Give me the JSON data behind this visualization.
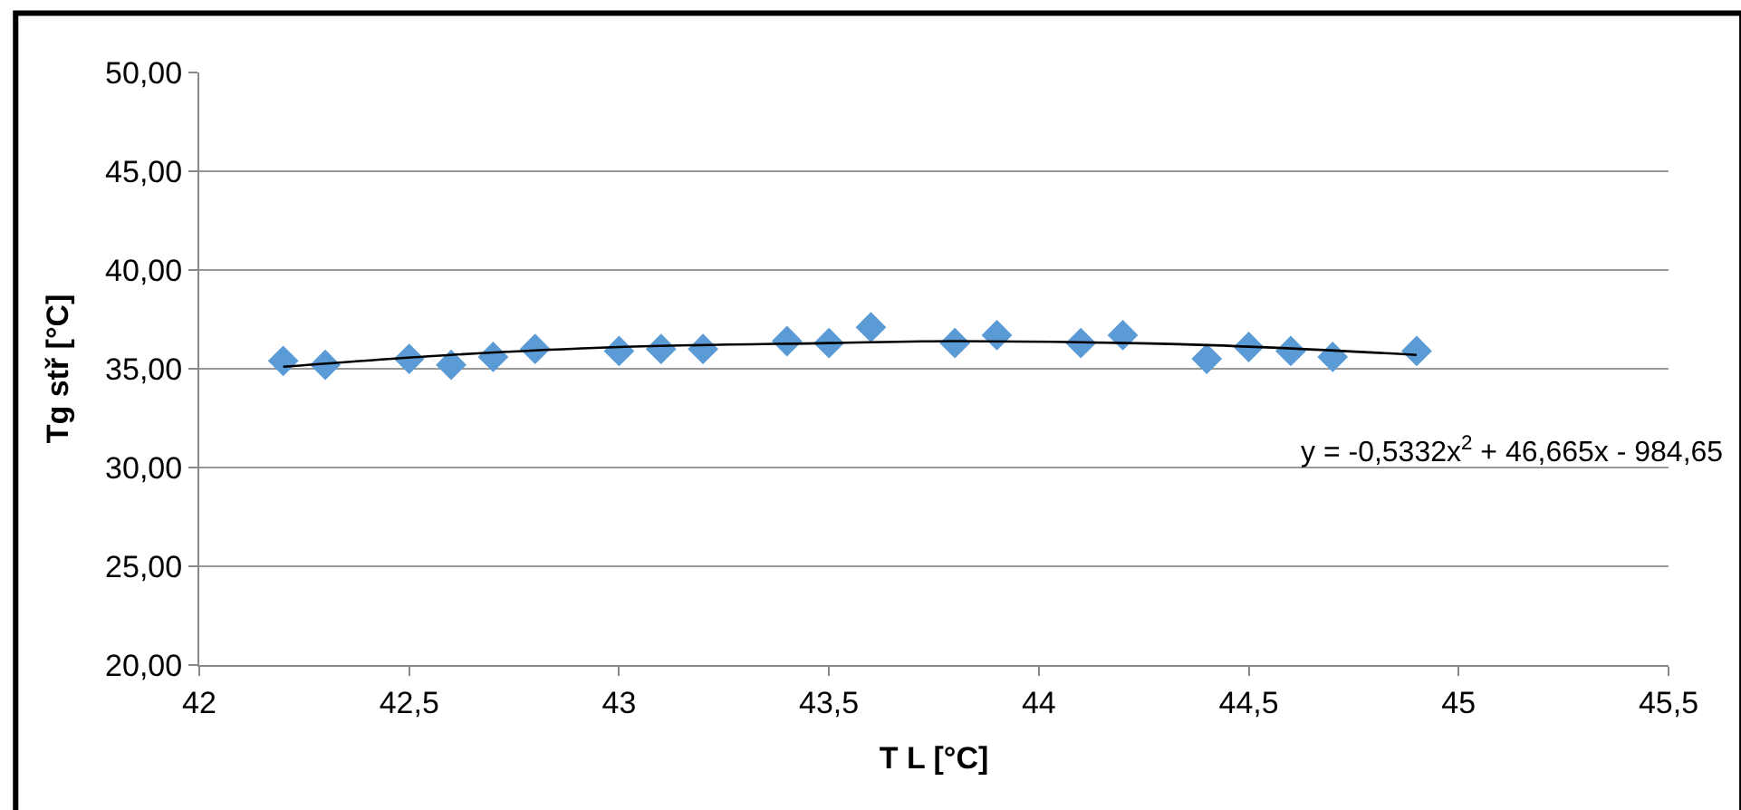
{
  "chart_data": {
    "type": "scatter",
    "xlabel": "T L [°C]",
    "ylabel": "Tg stř [°C]",
    "x": [
      42.2,
      42.3,
      42.5,
      42.6,
      42.7,
      42.8,
      43.0,
      43.1,
      43.2,
      43.4,
      43.5,
      43.6,
      43.8,
      43.9,
      44.1,
      44.2,
      44.4,
      44.5,
      44.6,
      44.7,
      44.9
    ],
    "series": [
      {
        "color": "#5b9bd5",
        "marker": "diamond",
        "values": [
          35.4,
          35.2,
          35.5,
          35.2,
          35.6,
          36.0,
          35.9,
          36.0,
          36.0,
          36.4,
          36.3,
          37.1,
          36.3,
          36.7,
          36.3,
          36.7,
          35.5,
          36.1,
          35.9,
          35.6,
          35.9
        ]
      },
      {
        "type": "line",
        "color": "#000000",
        "marker": "none",
        "line_style": "solid",
        "x": [
          42.2,
          42.6,
          43.0,
          43.5,
          43.8,
          44.4,
          44.9
        ],
        "values": [
          35.1,
          35.7,
          36.1,
          36.3,
          36.4,
          36.2,
          35.7
        ]
      }
    ],
    "annotations": [
      "y = -0,5332x$^{2}$ + 46,665x - 984,65"
    ],
    "xlim": [
      42,
      45.5
    ],
    "xticks": [
      42,
      {
        "value": 42.5,
        "label": "42,5"
      },
      43,
      {
        "value": 43.5,
        "label": "43,5"
      },
      44,
      {
        "value": 44.5,
        "label": "44,5"
      },
      45,
      {
        "value": 45.5,
        "label": "45,5"
      }
    ],
    "ylim": [
      20,
      50
    ],
    "yticks": [
      {
        "value": 20,
        "label": "20,00"
      },
      {
        "value": 25,
        "label": "25,00"
      },
      {
        "value": 30,
        "label": "30,00"
      },
      {
        "value": 35,
        "label": "35,00"
      },
      {
        "value": 40,
        "label": "40,00"
      },
      {
        "value": 45,
        "label": "45,00"
      },
      {
        "value": 50,
        "label": "50,00"
      }
    ],
    "grid": "y"
  }
}
